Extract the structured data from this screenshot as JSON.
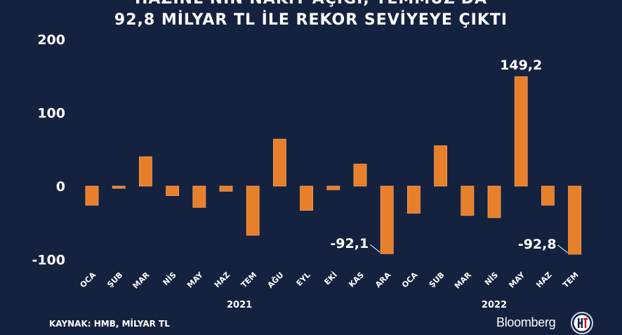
{
  "title_line1": "HAZİNE'NİN NAKİT AÇIĞI, TEMMUZ'DA",
  "title_line2": "92,8 MİLYAR TL İLE REKOR SEVİYEYE ÇIKTI",
  "source": "KAYNAK: HMB, MİLYAR TL",
  "brand": "Bloomberg",
  "colors": {
    "background": "#15223f",
    "bar": "#e87f2a",
    "bar_edge": "#f5a35c",
    "text": "#ffffff"
  },
  "chart_data": {
    "type": "bar",
    "categories": [
      "OCA",
      "ŞUB",
      "MAR",
      "NİS",
      "MAY",
      "HAZ",
      "TEM",
      "AĞU",
      "EYL",
      "EKİ",
      "KAS",
      "ARA",
      "OCA",
      "ŞUB",
      "MAR",
      "NİS",
      "MAY",
      "HAZ",
      "TEM"
    ],
    "years": [
      {
        "label": "2021",
        "from": 0,
        "to": 11
      },
      {
        "label": "2022",
        "from": 12,
        "to": 18
      }
    ],
    "values": [
      -26,
      -3,
      40,
      -13,
      -29,
      -7,
      -67,
      64,
      -33,
      -5,
      30,
      -92.1,
      -37,
      55,
      -40,
      -43,
      149.2,
      -26,
      -92.8
    ],
    "yticks": [
      "200",
      "100",
      "0",
      "-100"
    ],
    "ytick_values": [
      200,
      100,
      0,
      -100
    ],
    "ylim": [
      -100,
      200
    ],
    "annotations": [
      {
        "index": 11,
        "text": "-92,1"
      },
      {
        "index": 16,
        "text": "149,2"
      },
      {
        "index": 18,
        "text": "-92,8"
      }
    ]
  }
}
